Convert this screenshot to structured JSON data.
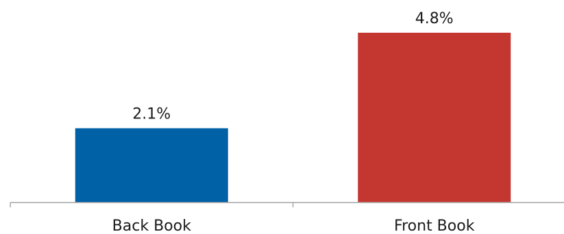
{
  "chart_data": {
    "type": "bar",
    "categories": [
      "Back Book",
      "Front Book"
    ],
    "values": [
      2.1,
      4.8
    ],
    "value_labels": [
      "2.1%",
      "4.8%"
    ],
    "unit": "%",
    "title": "",
    "xlabel": "",
    "ylabel": "",
    "ylim": [
      0,
      5.3
    ],
    "grid": false,
    "legend": "none",
    "colors": [
      "#0061a7",
      "#c43731"
    ],
    "axis_color": "#a6a6a6"
  }
}
